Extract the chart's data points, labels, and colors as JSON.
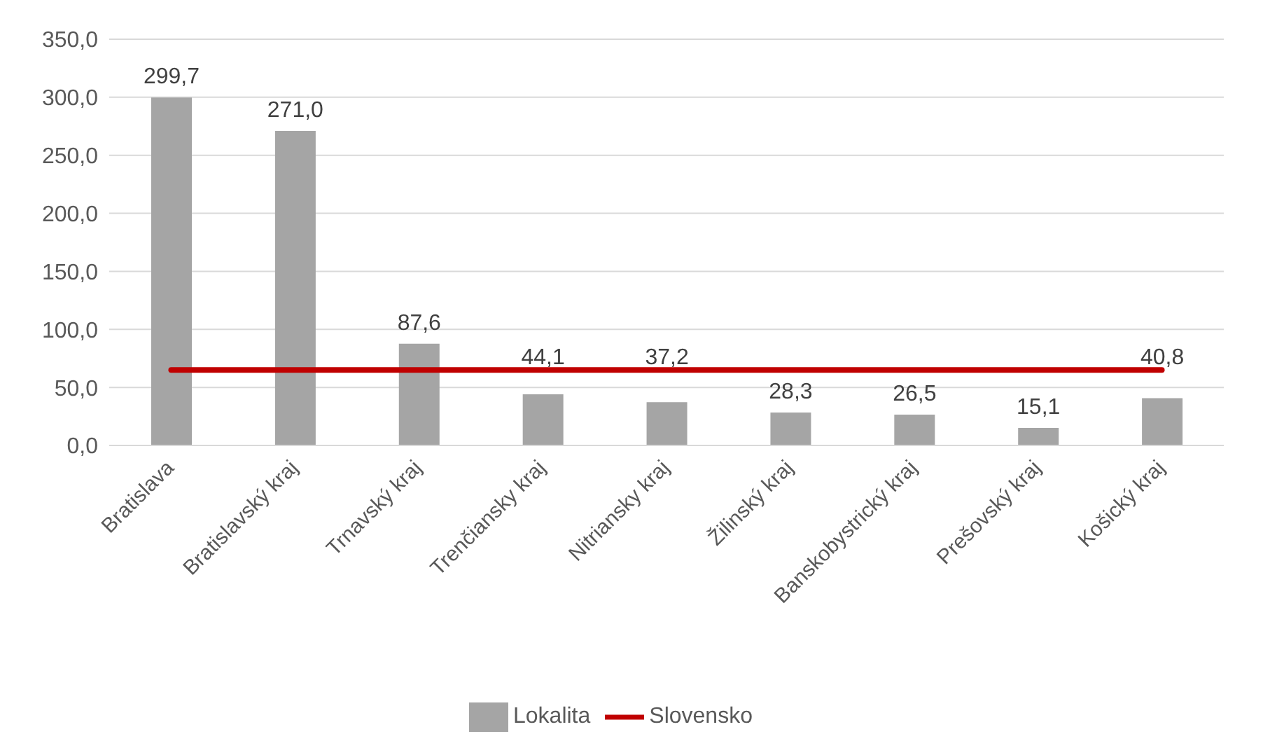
{
  "chart_data": {
    "type": "bar",
    "categories": [
      "Bratislava",
      "Bratislavský kraj",
      "Trnavský kraj",
      "Trenčiansky kraj",
      "Nitriansky kraj",
      "Žilinský kraj",
      "Banskobystrický kraj",
      "Prešovský kraj",
      "Košický kraj"
    ],
    "series": [
      {
        "name": "Lokalita",
        "color": "#a5a5a5",
        "values": [
          299.7,
          271.0,
          87.6,
          44.1,
          37.2,
          28.3,
          26.5,
          15.1,
          40.8
        ],
        "value_labels": [
          "299,7",
          "271,0",
          "87,6",
          "44,1",
          "37,2",
          "28,3",
          "26,5",
          "15,1",
          "40,8"
        ]
      },
      {
        "name": "Slovensko",
        "type": "line",
        "color": "#c00000",
        "values": [
          65,
          65,
          65,
          65,
          65,
          65,
          65,
          65,
          65
        ]
      }
    ],
    "ylim": [
      0,
      350
    ],
    "yticks": [
      {
        "value": 0,
        "label": "0,0"
      },
      {
        "value": 50,
        "label": "50,0"
      },
      {
        "value": 100,
        "label": "100,0"
      },
      {
        "value": 150,
        "label": "150,0"
      },
      {
        "value": 200,
        "label": "200,0"
      },
      {
        "value": 250,
        "label": "250,0"
      },
      {
        "value": 300,
        "label": "300,0"
      },
      {
        "value": 350,
        "label": "350,0"
      }
    ],
    "grid": "y",
    "legend": "bottom",
    "marker": "none"
  }
}
